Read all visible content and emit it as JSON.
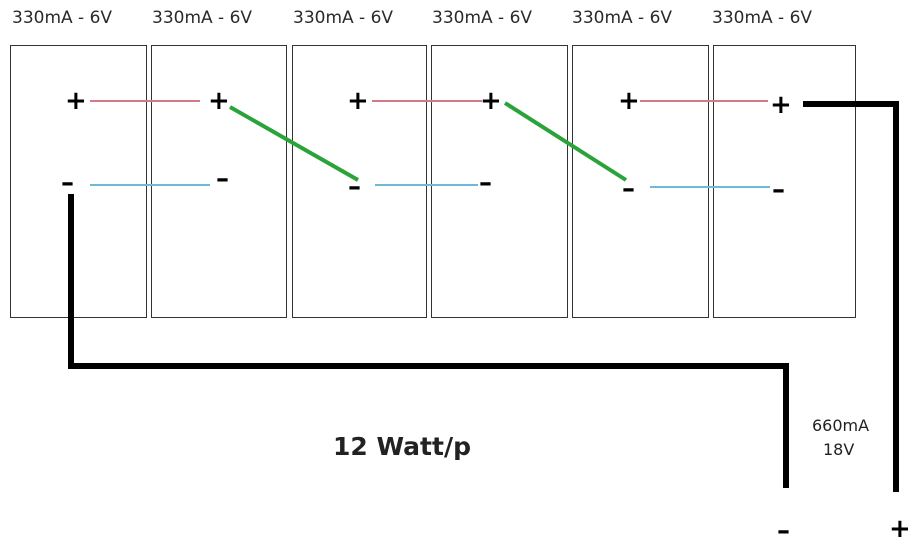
{
  "panels": [
    {
      "rating": "330mA - 6V"
    },
    {
      "rating": "330mA - 6V"
    },
    {
      "rating": "330mA - 6V"
    },
    {
      "rating": "330mA - 6V"
    },
    {
      "rating": "330mA - 6V"
    },
    {
      "rating": "330mA - 6V"
    }
  ],
  "terminals": {
    "plus": "+",
    "minus": "–"
  },
  "title": "12 Watt/p",
  "output": {
    "current": "660mA",
    "voltage": "18V",
    "minus": "–",
    "plus": "+"
  },
  "colors": {
    "positive_wire": "#d47a87",
    "negative_wire": "#6fb8d8",
    "series_link": "#2aa33a",
    "output_wire": "#000000",
    "panel_border": "#333333"
  }
}
